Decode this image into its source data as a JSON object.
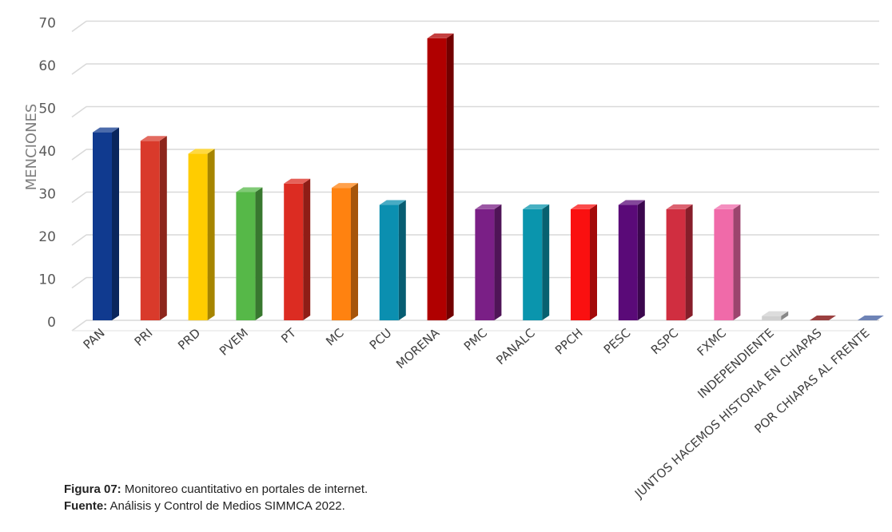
{
  "chart_data": {
    "type": "bar",
    "ylabel": "MENCIONES",
    "ylim": [
      0,
      70
    ],
    "yticks": [
      0,
      10,
      20,
      30,
      40,
      50,
      60,
      70
    ],
    "grid": true,
    "categories": [
      "PAN",
      "PRI",
      "PRD",
      "PVEM",
      "PT",
      "MC",
      "PCU",
      "MORENA",
      "PMC",
      "PANALC",
      "PPCH",
      "PESC",
      "RSPC",
      "FXMC",
      "INDEPENDIENTE",
      "JUNTOS HACEMOS HISTORIA EN CHIAPAS",
      "POR CHIAPAS AL FRENTE"
    ],
    "values": [
      44,
      42,
      39,
      30,
      32,
      31,
      27,
      66,
      26,
      26,
      26,
      27,
      26,
      26,
      1,
      0,
      0
    ],
    "colors": [
      "#103a8f",
      "#d93a2b",
      "#ffcc00",
      "#56b848",
      "#dc2c22",
      "#ff8210",
      "#0b8fb0",
      "#b00000",
      "#7a1f86",
      "#0a95ad",
      "#fa1010",
      "#5a0a78",
      "#d02e40",
      "#f06aa9",
      "#d0d0d0",
      "#7a0000",
      "#3d5a9e"
    ]
  },
  "caption": {
    "figure_label": "Figura 07:",
    "figure_text": " Monitoreo cuantitativo en portales de internet.",
    "source_label": "Fuente:",
    "source_text": " Análisis y Control de Medios SIMMCA 2022."
  }
}
